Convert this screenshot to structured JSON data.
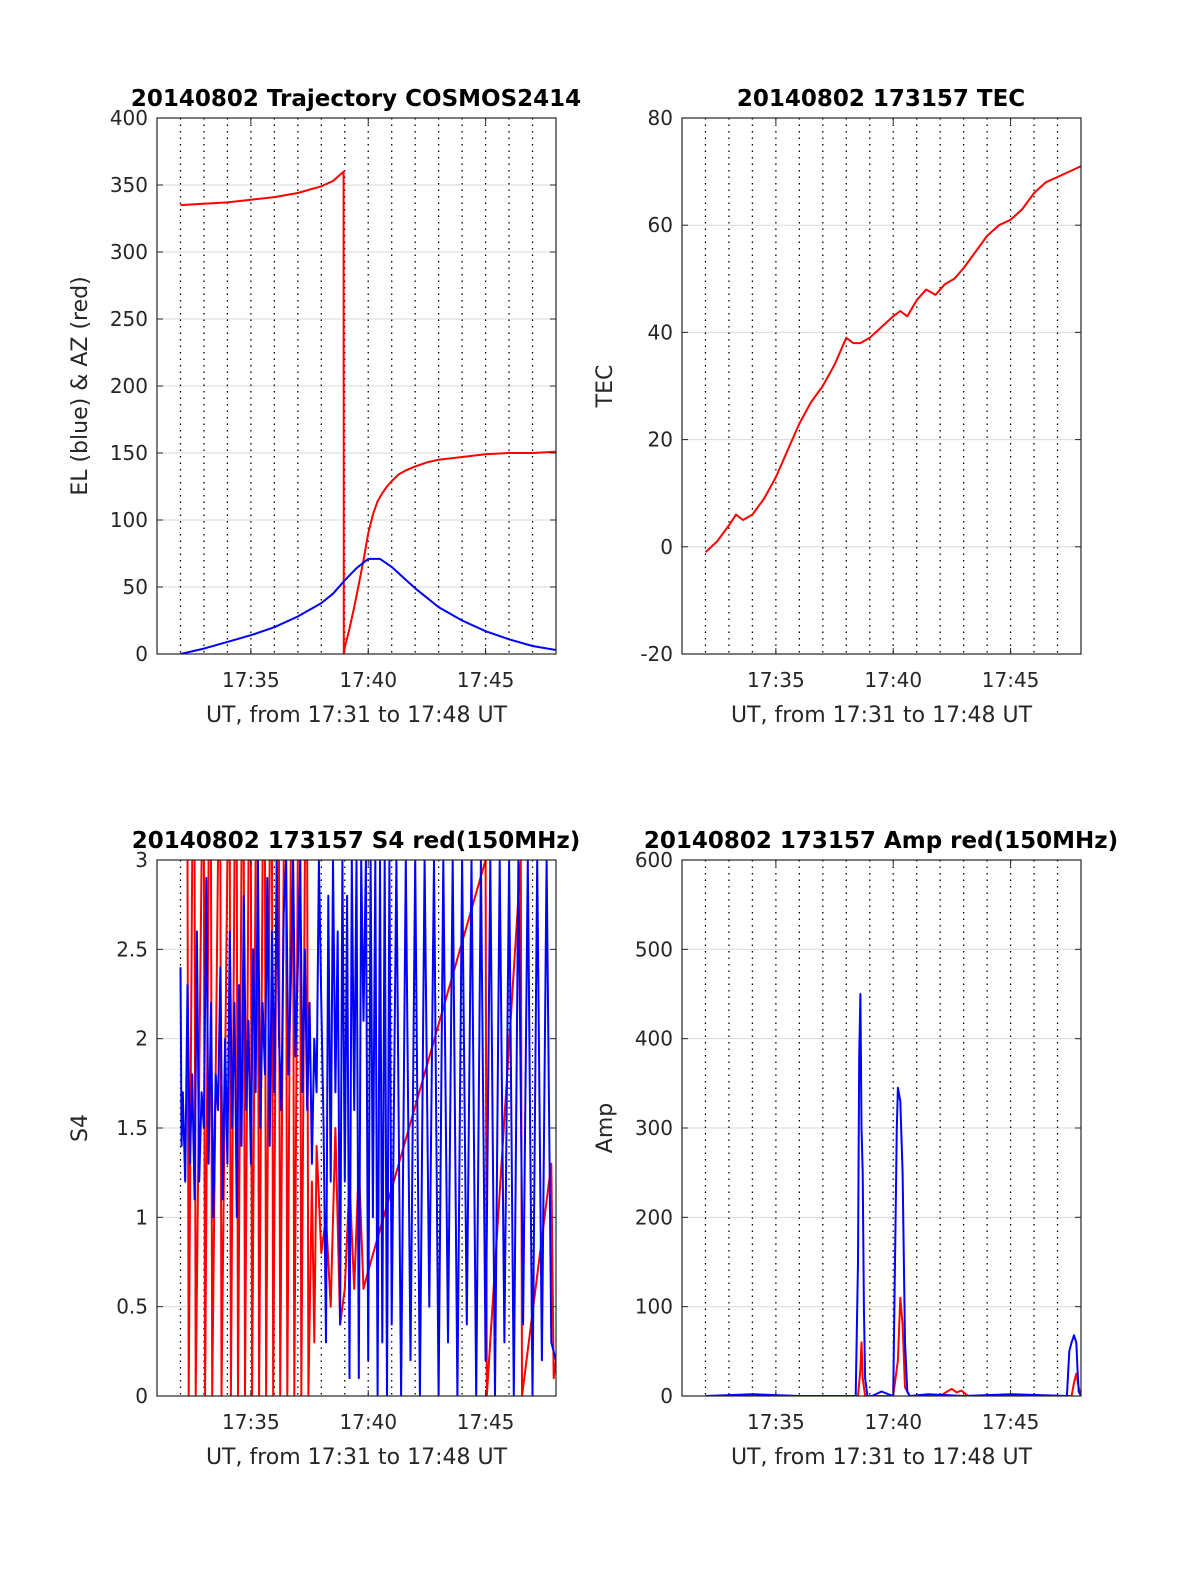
{
  "chart_data": [
    {
      "id": "traj",
      "type": "line",
      "title": "20140802 Trajectory COSMOS2414",
      "xlabel": "UT, from 17:31 to 17:48 UT",
      "ylabel": "EL (blue) & AZ (red)",
      "x_unit": "minutes after 17:31 UT",
      "xlim": [
        0,
        17
      ],
      "ylim": [
        0,
        400
      ],
      "yticks": [
        0,
        50,
        100,
        150,
        200,
        250,
        300,
        350,
        400
      ],
      "xticks": [
        4,
        9,
        14
      ],
      "xticklabels": [
        "17:35",
        "17:40",
        "17:45"
      ],
      "xgrid": [
        1,
        2,
        3,
        4,
        5,
        6,
        7,
        8,
        9,
        10,
        11,
        12,
        13,
        14,
        15,
        16
      ],
      "grid": true,
      "series": [
        {
          "color": "#ff0000",
          "x": [
            1,
            2,
            3,
            4,
            5,
            6,
            7,
            7.5,
            7.95,
            7.96,
            8.0,
            8.2,
            8.4,
            8.6,
            8.8,
            9.0,
            9.2,
            9.4,
            9.6,
            9.8,
            10.0,
            10.3,
            10.6,
            11.0,
            11.5,
            12.0,
            13.0,
            14.0,
            15.0,
            16.0,
            17.0
          ],
          "y": [
            335,
            336,
            337,
            339,
            341,
            344,
            349,
            353,
            360,
            0,
            5,
            19,
            35,
            52,
            70,
            90,
            104,
            114,
            120,
            125,
            129,
            134,
            137,
            140,
            143,
            145,
            147,
            149,
            150,
            150,
            151
          ]
        },
        {
          "color": "#0000ff",
          "x": [
            1,
            2,
            3,
            4,
            5,
            6,
            7,
            7.5,
            8,
            8.5,
            9,
            9.5,
            10,
            10.5,
            11,
            11.5,
            12,
            13,
            14,
            15,
            16,
            17
          ],
          "y": [
            0,
            4,
            9,
            14,
            20,
            28,
            38,
            45,
            55,
            64,
            71,
            71,
            65,
            57,
            49,
            42,
            35,
            25,
            17,
            11,
            6,
            3
          ]
        }
      ]
    },
    {
      "id": "tec",
      "type": "line",
      "title": "20140802 173157 TEC",
      "xlabel": "UT, from 17:31 to 17:48 UT",
      "ylabel": "TEC",
      "x_unit": "minutes after 17:31 UT",
      "xlim": [
        0,
        17
      ],
      "ylim": [
        -20,
        80
      ],
      "yticks": [
        -20,
        0,
        20,
        40,
        60,
        80
      ],
      "xticks": [
        4,
        9,
        14
      ],
      "xticklabels": [
        "17:35",
        "17:40",
        "17:45"
      ],
      "xgrid": [
        1,
        2,
        3,
        4,
        5,
        6,
        7,
        8,
        9,
        10,
        11,
        12,
        13,
        14,
        15,
        16
      ],
      "grid": true,
      "series": [
        {
          "color": "#ff0000",
          "x": [
            1,
            1.5,
            2,
            2.3,
            2.6,
            3,
            3.5,
            4,
            4.5,
            5,
            5.5,
            6,
            6.5,
            6.8,
            7,
            7.3,
            7.6,
            8,
            8.5,
            9,
            9.3,
            9.6,
            10,
            10.4,
            10.8,
            11.2,
            11.6,
            12,
            12.5,
            13,
            13.5,
            14,
            14.5,
            15,
            15.5,
            16,
            16.5,
            17
          ],
          "y": [
            -1,
            1,
            4,
            6,
            5,
            6,
            9,
            13,
            18,
            23,
            27,
            30,
            34,
            37,
            39,
            38,
            38,
            39,
            41,
            43,
            44,
            43,
            46,
            48,
            47,
            49,
            50,
            52,
            55,
            58,
            60,
            61,
            63,
            66,
            68,
            69,
            70,
            71
          ]
        }
      ]
    },
    {
      "id": "s4",
      "type": "line",
      "title": "20140802 173157 S4 red(150MHz)",
      "xlabel": "UT, from 17:31 to 17:48 UT",
      "ylabel": "S4",
      "x_unit": "minutes after 17:31 UT",
      "xlim": [
        0,
        17
      ],
      "ylim": [
        0,
        3
      ],
      "yticks": [
        0,
        0.5,
        1,
        1.5,
        2,
        2.5,
        3
      ],
      "xticks": [
        4,
        9,
        14
      ],
      "xticklabels": [
        "17:35",
        "17:40",
        "17:45"
      ],
      "xgrid": [
        1,
        2,
        3,
        4,
        5,
        6,
        7,
        8,
        9,
        10,
        11,
        12,
        13,
        14,
        15,
        16
      ],
      "grid": true,
      "series": [
        {
          "color": "#ff0000",
          "x": [
            1.3,
            1.35,
            1.5,
            1.6,
            1.65,
            1.9,
            2.0,
            2.05,
            2.2,
            2.3,
            2.35,
            2.6,
            2.7,
            2.75,
            3.0,
            3.1,
            3.15,
            3.3,
            3.4,
            3.45,
            3.6,
            3.7,
            3.75,
            3.9,
            4.0,
            4.05,
            4.2,
            4.3,
            4.35,
            4.5,
            4.6,
            4.65,
            4.8,
            4.9,
            4.95,
            5.1,
            5.2,
            5.25,
            5.4,
            5.5,
            5.55,
            5.7,
            5.8,
            5.85,
            6.0,
            6.1,
            6.15,
            6.3,
            6.4,
            6.45,
            6.6,
            6.7,
            6.8,
            7.0,
            7.2,
            7.4,
            7.6,
            7.8,
            8.0,
            8.2,
            8.4,
            8.6,
            8.8,
            9.0,
            14.0,
            14.05,
            15.5,
            15.55,
            16.8,
            16.9,
            17.0
          ],
          "y": [
            3,
            0,
            3,
            3,
            0,
            3,
            3,
            0,
            3,
            3,
            0,
            3,
            3,
            0,
            3,
            3,
            0,
            3,
            3,
            0,
            3,
            3,
            0,
            3,
            3,
            0,
            3,
            3,
            0,
            3,
            3,
            0,
            3,
            3,
            0,
            3,
            3,
            0,
            3,
            3,
            0,
            3,
            3,
            0,
            3,
            3,
            0,
            3,
            3,
            0,
            1.2,
            0.3,
            1.4,
            0.8,
            1.0,
            0.5,
            1.5,
            0.4,
            0.6,
            1.2,
            0.6,
            1.3,
            0.6,
            0.7,
            3,
            0,
            3,
            0,
            1.3,
            0.1,
            0.2
          ]
        },
        {
          "color": "#0000ff",
          "x": [
            1,
            1.05,
            1.1,
            1.2,
            1.3,
            1.4,
            1.5,
            1.6,
            1.7,
            1.8,
            1.9,
            2.0,
            2.1,
            2.2,
            2.3,
            2.4,
            2.5,
            2.6,
            2.7,
            2.8,
            2.9,
            3.0,
            3.1,
            3.2,
            3.3,
            3.4,
            3.5,
            3.6,
            3.7,
            3.8,
            3.9,
            4.0,
            4.1,
            4.2,
            4.3,
            4.4,
            4.5,
            4.6,
            4.7,
            4.8,
            4.9,
            5.0,
            5.1,
            5.2,
            5.3,
            5.4,
            5.5,
            5.6,
            5.7,
            5.8,
            5.9,
            6.0,
            6.1,
            6.2,
            6.3,
            6.4,
            6.5,
            6.6,
            6.7,
            6.8,
            6.9,
            7.0,
            7.1,
            7.2,
            7.3,
            7.4,
            7.5,
            7.6,
            7.7,
            7.8,
            7.9,
            8.0,
            8.1,
            8.2,
            8.3,
            8.4,
            8.5,
            8.6,
            8.7,
            8.8,
            8.9,
            9.0,
            9.1,
            9.2,
            9.3,
            9.4,
            9.5,
            9.6,
            9.7,
            9.8,
            9.9,
            10.0,
            10.2,
            10.4,
            10.6,
            10.8,
            11.0,
            11.2,
            11.4,
            11.6,
            11.8,
            12.0,
            12.2,
            12.4,
            12.6,
            12.8,
            13.0,
            13.2,
            13.4,
            13.6,
            13.8,
            14.0,
            14.2,
            14.4,
            14.6,
            14.8,
            15.0,
            15.2,
            15.4,
            15.6,
            15.8,
            16.0,
            16.2,
            16.4,
            16.6,
            16.8,
            17.0
          ],
          "y": [
            2.4,
            1.4,
            1.7,
            1.2,
            2.3,
            1.3,
            1.8,
            1.1,
            2.6,
            1.2,
            1.7,
            1.5,
            2.9,
            1.3,
            2.2,
            1.0,
            1.8,
            1.6,
            2.4,
            1.1,
            2.0,
            1.3,
            2.6,
            1.5,
            2.2,
            1.0,
            2.3,
            1.4,
            2.8,
            1.6,
            2.1,
            1.3,
            2.5,
            1.7,
            3.0,
            1.5,
            2.2,
            1.8,
            2.9,
            1.4,
            2.6,
            1.7,
            3.0,
            2.0,
            1.6,
            2.7,
            3.0,
            1.8,
            2.3,
            3.0,
            1.9,
            2.4,
            3.0,
            1.7,
            2.5,
            1.6,
            2.2,
            1.3,
            2.0,
            1.7,
            3.0,
            2.2,
            1.5,
            0.3,
            2.8,
            1.2,
            3.0,
            1.7,
            2.6,
            0.4,
            3.0,
            1.2,
            2.8,
            0.1,
            3.0,
            1.6,
            3.0,
            0.1,
            3.0,
            2.1,
            3.0,
            0.2,
            3.0,
            1.0,
            3.0,
            0.0,
            3.0,
            0.3,
            3.0,
            0.0,
            3.0,
            0.4,
            3.0,
            0.0,
            3.0,
            0.2,
            3.0,
            0.0,
            3.0,
            0.5,
            3.0,
            0.0,
            3.0,
            0.3,
            3.0,
            0.0,
            3.0,
            0.4,
            3.0,
            0.0,
            3.0,
            0.2,
            3.0,
            0.0,
            3.0,
            0.3,
            3.0,
            0.0,
            3.0,
            0.4,
            3.0,
            0.0,
            3.0,
            0.2,
            3.0,
            0.3,
            0.2
          ]
        }
      ]
    },
    {
      "id": "amp",
      "type": "line",
      "title": "20140802 173157 Amp red(150MHz)",
      "xlabel": "UT, from 17:31 to 17:48 UT",
      "ylabel": "Amp",
      "x_unit": "minutes after 17:31 UT",
      "xlim": [
        0,
        17
      ],
      "ylim": [
        0,
        600
      ],
      "yticks": [
        0,
        100,
        200,
        300,
        400,
        500,
        600
      ],
      "xticks": [
        4,
        9,
        14
      ],
      "xticklabels": [
        "17:35",
        "17:40",
        "17:45"
      ],
      "xgrid": [
        1,
        2,
        3,
        4,
        5,
        6,
        7,
        8,
        9,
        10,
        11,
        12,
        13,
        14,
        15,
        16
      ],
      "grid": true,
      "series": [
        {
          "color": "#ff0000",
          "x": [
            1,
            7.5,
            7.6,
            7.65,
            7.7,
            7.8,
            8.0,
            9.0,
            9.2,
            9.3,
            9.4,
            9.5,
            9.7,
            11.0,
            11.3,
            11.5,
            11.7,
            11.9,
            12.2,
            16.6,
            16.7,
            16.8,
            16.9,
            17.0
          ],
          "y": [
            0,
            0,
            30,
            60,
            20,
            0,
            0,
            0,
            40,
            110,
            80,
            10,
            0,
            0,
            5,
            8,
            4,
            6,
            0,
            0,
            15,
            25,
            10,
            0
          ]
        },
        {
          "color": "#0000ff",
          "x": [
            1,
            3,
            5,
            7.4,
            7.5,
            7.55,
            7.6,
            7.65,
            7.7,
            7.75,
            7.8,
            7.9,
            8.1,
            8.5,
            9.0,
            9.1,
            9.15,
            9.2,
            9.3,
            9.4,
            9.5,
            9.6,
            9.7,
            10.5,
            12.0,
            14.0,
            16.4,
            16.5,
            16.6,
            16.7,
            16.8,
            16.85,
            16.9,
            17.0
          ],
          "y": [
            0,
            2,
            0,
            0,
            150,
            380,
            450,
            300,
            250,
            100,
            20,
            0,
            0,
            5,
            0,
            200,
            300,
            345,
            330,
            250,
            60,
            5,
            0,
            2,
            0,
            2,
            0,
            50,
            60,
            68,
            60,
            30,
            5,
            0
          ]
        }
      ]
    }
  ]
}
